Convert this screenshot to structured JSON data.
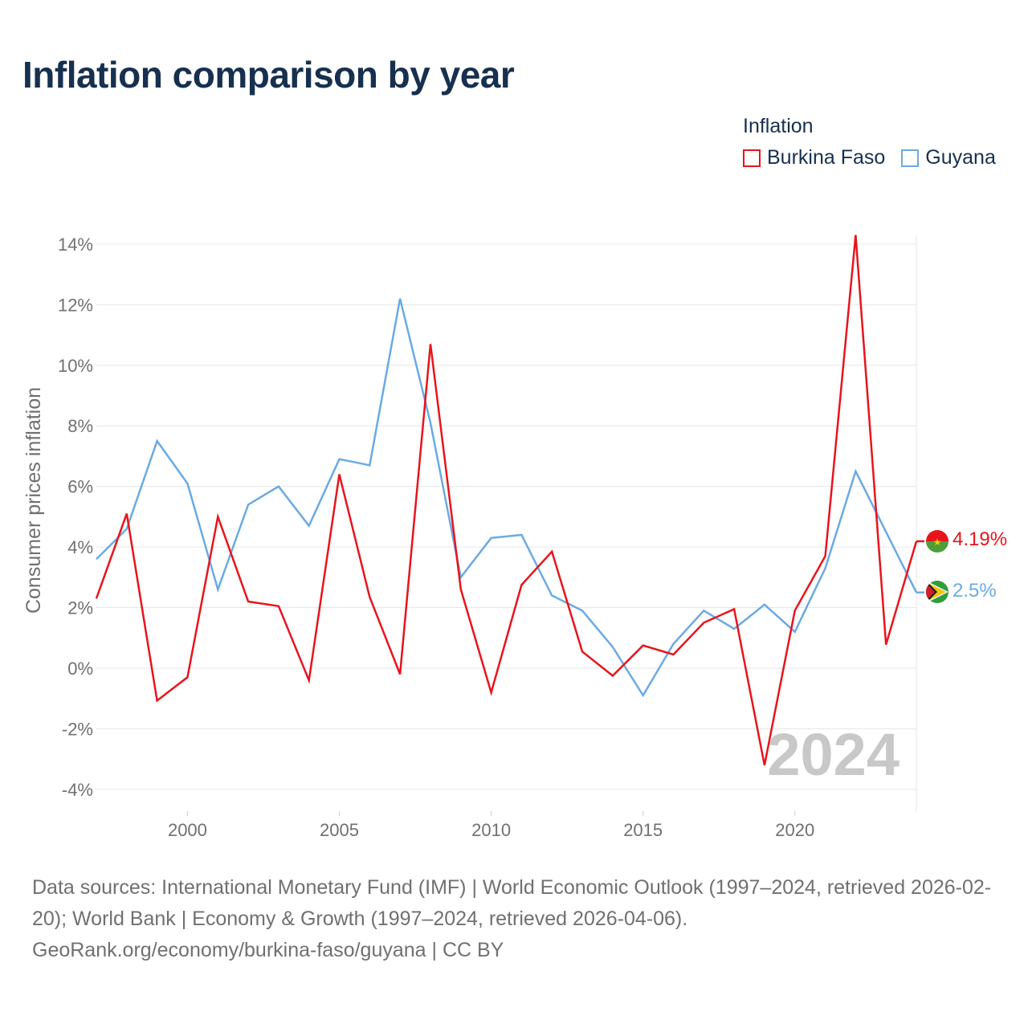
{
  "title": "Inflation comparison by year",
  "legend": {
    "title": "Inflation",
    "items": [
      {
        "label": "Burkina Faso",
        "color": "#e8141c"
      },
      {
        "label": "Guyana",
        "color": "#6aaae4"
      }
    ]
  },
  "chart_data": {
    "type": "line",
    "ylabel": "Consumer prices inflation",
    "xlabel": "",
    "x": [
      1997,
      1998,
      1999,
      2000,
      2001,
      2002,
      2003,
      2004,
      2005,
      2006,
      2007,
      2008,
      2009,
      2010,
      2011,
      2012,
      2013,
      2014,
      2015,
      2016,
      2017,
      2018,
      2019,
      2020,
      2021,
      2022,
      2023,
      2024
    ],
    "xlim": [
      1997,
      2024
    ],
    "ylim": [
      -4.8,
      15
    ],
    "yticks": [
      -4,
      -2,
      0,
      2,
      4,
      6,
      8,
      10,
      12,
      14
    ],
    "ytick_labels": [
      "-4%",
      "-2%",
      "0%",
      "2%",
      "4%",
      "6%",
      "8%",
      "10%",
      "12%",
      "14%"
    ],
    "xticks": [
      2000,
      2005,
      2010,
      2015,
      2020
    ],
    "xtick_labels": [
      "2000",
      "2005",
      "2010",
      "2015",
      "2020"
    ],
    "grid": true,
    "series": [
      {
        "name": "Burkina Faso",
        "color": "#e8141c",
        "values": [
          2.3,
          5.1,
          -1.07,
          -0.3,
          5.0,
          2.2,
          2.05,
          -0.4,
          6.4,
          2.35,
          -0.2,
          10.7,
          2.6,
          -0.8,
          2.75,
          3.85,
          0.55,
          -0.25,
          0.75,
          0.45,
          1.5,
          1.95,
          -3.2,
          1.9,
          3.7,
          14.3,
          0.78,
          4.19
        ],
        "end_label": "4.19%"
      },
      {
        "name": "Guyana",
        "color": "#6aaae4",
        "values": [
          3.6,
          4.6,
          7.5,
          6.1,
          2.6,
          5.4,
          6.0,
          4.7,
          6.9,
          6.7,
          12.2,
          8.1,
          3.0,
          4.3,
          4.4,
          2.4,
          1.9,
          0.7,
          -0.9,
          0.8,
          1.9,
          1.3,
          2.1,
          1.2,
          3.3,
          6.5,
          4.5,
          2.5
        ],
        "end_label": "2.5%"
      }
    ],
    "watermark_year": "2024"
  },
  "sources": {
    "line1": "Data sources: International Monetary Fund (IMF) | World Economic Outlook (1997–2024, retrieved 2026-02-20); World Bank | Economy & Growth (1997–2024, retrieved 2026-04-06).",
    "line2": "GeoRank.org/economy/burkina-faso/guyana | CC BY"
  }
}
